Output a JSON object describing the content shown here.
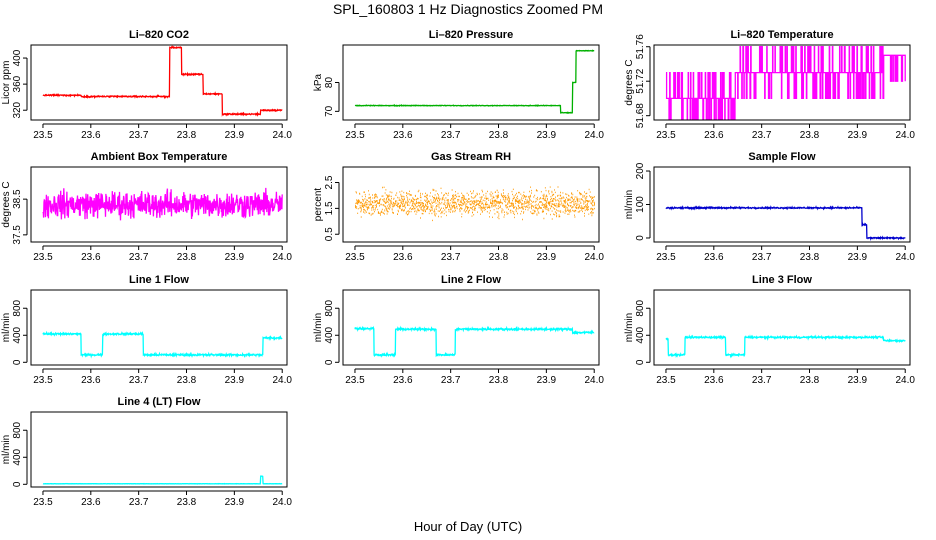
{
  "figure": {
    "title": "SPL_160803  1 Hz Diagnostics Zoomed PM",
    "xlabel": "Hour of Day (UTC)"
  },
  "chart_data": [
    {
      "id": "co2",
      "type": "line",
      "title": "Li–820 CO2",
      "ylabel": "Licor ppm",
      "color": "#ff0000",
      "xlim": [
        23.475,
        24.01
      ],
      "ylim": [
        305,
        420
      ],
      "xticks": [
        "23.5",
        "23.6",
        "23.7",
        "23.8",
        "23.9",
        "24.0"
      ],
      "yticks": [
        {
          "v": 320,
          "t": "320"
        },
        {
          "v": 360,
          "t": "360"
        },
        {
          "v": 400,
          "t": "400"
        }
      ],
      "noise": 1.5,
      "style": "step",
      "segments": [
        [
          23.5,
          23.58,
          343
        ],
        [
          23.58,
          23.765,
          341
        ],
        [
          23.765,
          23.79,
          416
        ],
        [
          23.79,
          23.835,
          375
        ],
        [
          23.835,
          23.875,
          345
        ],
        [
          23.875,
          23.955,
          314
        ],
        [
          23.955,
          24.0,
          320
        ]
      ]
    },
    {
      "id": "pressure",
      "type": "line",
      "title": "Li–820 Pressure",
      "ylabel": "kPa",
      "color": "#00b000",
      "xlim": [
        23.475,
        24.01
      ],
      "ylim": [
        67,
        93
      ],
      "xticks": [
        "23.5",
        "23.6",
        "23.7",
        "23.8",
        "23.9",
        "24.0"
      ],
      "yticks": [
        {
          "v": 70,
          "t": "70"
        },
        {
          "v": 80,
          "t": "80"
        }
      ],
      "noise": 0.15,
      "style": "step",
      "segments": [
        [
          23.5,
          23.93,
          72
        ],
        [
          23.93,
          23.955,
          69.5
        ],
        [
          23.955,
          23.962,
          80
        ],
        [
          23.962,
          24.0,
          91
        ]
      ]
    },
    {
      "id": "licor_temp",
      "type": "line",
      "title": "Li–820 Temperature",
      "ylabel": "degrees C",
      "color": "#ff00ff",
      "xlim": [
        23.475,
        24.01
      ],
      "ylim": [
        51.675,
        51.762
      ],
      "xticks": [
        "23.5",
        "23.6",
        "23.7",
        "23.8",
        "23.9",
        "24.0"
      ],
      "yticks": [
        {
          "v": 51.68,
          "t": "51.68"
        },
        {
          "v": 51.72,
          "t": "51.72"
        },
        {
          "v": 51.76,
          "t": "51.76"
        }
      ],
      "noise": 0,
      "style": "quantized",
      "segments": [
        [
          23.5,
          23.645,
          51.7
        ],
        [
          23.645,
          23.955,
          51.73
        ],
        [
          23.955,
          24.0,
          51.75
        ]
      ],
      "quantum": 0.03,
      "flicker": 0.3
    },
    {
      "id": "box_temp",
      "type": "line",
      "title": "Ambient Box Temperature",
      "ylabel": "degrees C",
      "color": "#ff00ff",
      "xlim": [
        23.475,
        24.01
      ],
      "ylim": [
        37.3,
        39.4
      ],
      "xticks": [
        "23.5",
        "23.6",
        "23.7",
        "23.8",
        "23.9",
        "24.0"
      ],
      "yticks": [
        {
          "v": 37.5,
          "t": "37.5"
        },
        {
          "v": 38.5,
          "t": "38.5"
        }
      ],
      "noise": 0.55,
      "style": "noise",
      "segments": [
        [
          23.5,
          24.0,
          38.35
        ]
      ]
    },
    {
      "id": "rh",
      "type": "line",
      "title": "Gas Stream RH",
      "ylabel": "percent",
      "color": "#ff9900",
      "xlim": [
        23.475,
        24.01
      ],
      "ylim": [
        0.2,
        3.1
      ],
      "xticks": [
        "23.5",
        "23.6",
        "23.7",
        "23.8",
        "23.9",
        "24.0"
      ],
      "yticks": [
        {
          "v": 0.5,
          "t": "0.5"
        },
        {
          "v": 1.5,
          "t": "1.5"
        },
        {
          "v": 2.5,
          "t": "2.5"
        }
      ],
      "noise": 0.7,
      "style": "dots",
      "segments": [
        [
          23.5,
          24.0,
          1.7
        ]
      ]
    },
    {
      "id": "sample_flow",
      "type": "line",
      "title": "Sample Flow",
      "ylabel": "ml/min",
      "color": "#0000cc",
      "xlim": [
        23.475,
        24.01
      ],
      "ylim": [
        -12,
        212
      ],
      "xticks": [
        "23.5",
        "23.6",
        "23.7",
        "23.8",
        "23.9",
        "24.0"
      ],
      "yticks": [
        {
          "v": 0,
          "t": "0"
        },
        {
          "v": 100,
          "t": "100"
        },
        {
          "v": 200,
          "t": "200"
        }
      ],
      "noise": 3,
      "style": "step",
      "segments": [
        [
          23.5,
          23.91,
          90
        ],
        [
          23.91,
          23.92,
          40
        ],
        [
          23.92,
          24.0,
          0
        ]
      ]
    },
    {
      "id": "line1",
      "type": "line",
      "title": "Line 1 Flow",
      "ylabel": "ml/min",
      "color": "#00ffff",
      "xlim": [
        23.475,
        24.01
      ],
      "ylim": [
        -40,
        1070
      ],
      "xticks": [
        "23.5",
        "23.6",
        "23.7",
        "23.8",
        "23.9",
        "24.0"
      ],
      "yticks": [
        {
          "v": 0,
          "t": "0"
        },
        {
          "v": 400,
          "t": "400"
        },
        {
          "v": 800,
          "t": "800"
        }
      ],
      "noise": 22,
      "style": "step",
      "segments": [
        [
          23.5,
          23.58,
          420
        ],
        [
          23.58,
          23.625,
          110
        ],
        [
          23.625,
          23.71,
          420
        ],
        [
          23.71,
          23.96,
          110
        ],
        [
          23.96,
          24.0,
          360
        ]
      ]
    },
    {
      "id": "line2",
      "type": "line",
      "title": "Line 2 Flow",
      "ylabel": "ml/min",
      "color": "#00ffff",
      "xlim": [
        23.475,
        24.01
      ],
      "ylim": [
        -40,
        1070
      ],
      "xticks": [
        "23.5",
        "23.6",
        "23.7",
        "23.8",
        "23.9",
        "24.0"
      ],
      "yticks": [
        {
          "v": 0,
          "t": "0"
        },
        {
          "v": 400,
          "t": "400"
        },
        {
          "v": 800,
          "t": "800"
        }
      ],
      "noise": 22,
      "style": "step",
      "segments": [
        [
          23.5,
          23.54,
          500
        ],
        [
          23.54,
          23.585,
          110
        ],
        [
          23.585,
          23.67,
          490
        ],
        [
          23.67,
          23.71,
          110
        ],
        [
          23.71,
          23.955,
          490
        ],
        [
          23.955,
          24.0,
          440
        ]
      ]
    },
    {
      "id": "line3",
      "type": "line",
      "title": "Line 3 Flow",
      "ylabel": "ml/min",
      "color": "#00ffff",
      "xlim": [
        23.475,
        24.01
      ],
      "ylim": [
        -40,
        1070
      ],
      "xticks": [
        "23.5",
        "23.6",
        "23.7",
        "23.8",
        "23.9",
        "24.0"
      ],
      "yticks": [
        {
          "v": 0,
          "t": "0"
        },
        {
          "v": 400,
          "t": "400"
        },
        {
          "v": 800,
          "t": "800"
        }
      ],
      "noise": 18,
      "style": "step",
      "segments": [
        [
          23.5,
          23.505,
          350
        ],
        [
          23.505,
          23.54,
          110
        ],
        [
          23.54,
          23.625,
          370
        ],
        [
          23.625,
          23.665,
          110
        ],
        [
          23.665,
          23.955,
          370
        ],
        [
          23.955,
          24.0,
          320
        ]
      ]
    },
    {
      "id": "line4",
      "type": "line",
      "title": "Line 4 (LT) Flow",
      "ylabel": "ml/min",
      "color": "#00ffff",
      "xlim": [
        23.475,
        24.01
      ],
      "ylim": [
        -40,
        1070
      ],
      "xticks": [
        "23.5",
        "23.6",
        "23.7",
        "23.8",
        "23.9",
        "24.0"
      ],
      "yticks": [
        {
          "v": 0,
          "t": "0"
        },
        {
          "v": 400,
          "t": "400"
        },
        {
          "v": 800,
          "t": "800"
        }
      ],
      "noise": 3,
      "style": "step",
      "segments": [
        [
          23.5,
          23.955,
          8
        ],
        [
          23.955,
          23.96,
          120
        ],
        [
          23.96,
          24.0,
          8
        ]
      ]
    }
  ]
}
